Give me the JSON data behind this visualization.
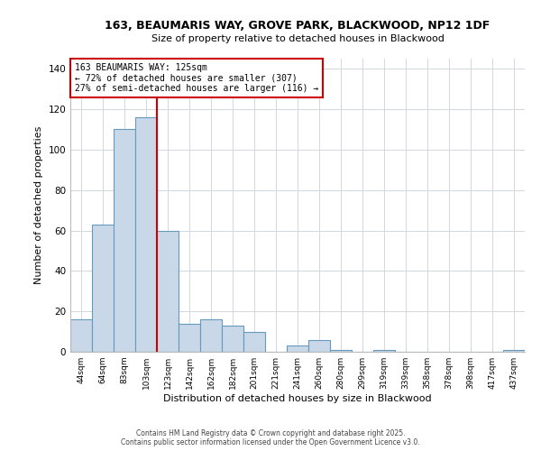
{
  "title": "163, BEAUMARIS WAY, GROVE PARK, BLACKWOOD, NP12 1DF",
  "subtitle": "Size of property relative to detached houses in Blackwood",
  "xlabel": "Distribution of detached houses by size in Blackwood",
  "ylabel": "Number of detached properties",
  "bar_categories": [
    "44sqm",
    "64sqm",
    "83sqm",
    "103sqm",
    "123sqm",
    "142sqm",
    "162sqm",
    "182sqm",
    "201sqm",
    "221sqm",
    "241sqm",
    "260sqm",
    "280sqm",
    "299sqm",
    "319sqm",
    "339sqm",
    "358sqm",
    "378sqm",
    "398sqm",
    "417sqm",
    "437sqm"
  ],
  "bar_heights": [
    16,
    63,
    110,
    116,
    60,
    14,
    16,
    13,
    10,
    0,
    3,
    6,
    1,
    0,
    1,
    0,
    0,
    0,
    0,
    0,
    1
  ],
  "bar_color": "#c8d8e8",
  "bar_edge_color": "#6699bb",
  "property_line_color": "#cc0000",
  "ylim": [
    0,
    145
  ],
  "yticks": [
    0,
    20,
    40,
    60,
    80,
    100,
    120,
    140
  ],
  "annotation_title": "163 BEAUMARIS WAY: 125sqm",
  "annotation_line1": "← 72% of detached houses are smaller (307)",
  "annotation_line2": "27% of semi-detached houses are larger (116) →",
  "annotation_box_color": "#ffffff",
  "annotation_box_edge": "#cc0000",
  "footer1": "Contains HM Land Registry data © Crown copyright and database right 2025.",
  "footer2": "Contains public sector information licensed under the Open Government Licence v3.0.",
  "background_color": "#ffffff",
  "grid_color": "#d0d8e0"
}
